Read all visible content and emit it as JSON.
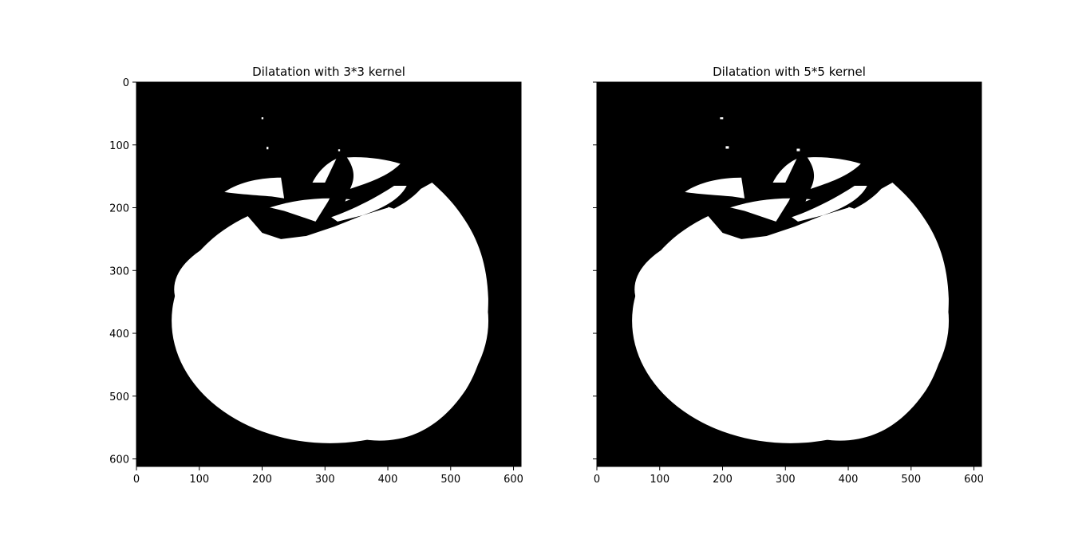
{
  "chart_data": [
    {
      "type": "heatmap",
      "title": "Dilatation with 3*3 kernel",
      "xlim": [
        0,
        612
      ],
      "ylim": [
        612,
        0
      ],
      "xticks": [
        0,
        100,
        200,
        300,
        400,
        500,
        600
      ],
      "yticks": [
        0,
        100,
        200,
        300,
        400,
        500,
        600
      ],
      "colors": {
        "background": "#000000",
        "foreground": "#ffffff"
      }
    },
    {
      "type": "heatmap",
      "title": "Dilatation with 5*5 kernel",
      "xlim": [
        0,
        612
      ],
      "ylim": [
        612,
        0
      ],
      "xticks": [
        0,
        100,
        200,
        300,
        400,
        500,
        600
      ],
      "yticks": [
        0,
        100,
        200,
        300,
        400,
        500,
        600
      ],
      "shared_y_labels": false,
      "colors": {
        "background": "#000000",
        "foreground": "#ffffff"
      }
    }
  ]
}
